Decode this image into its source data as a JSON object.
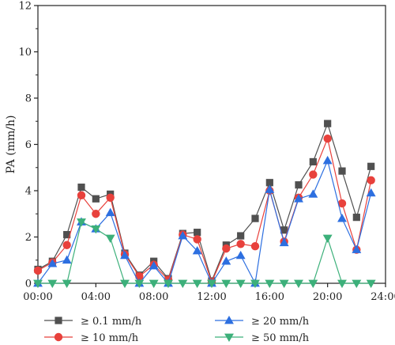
{
  "chart_data": {
    "type": "line",
    "xlabel": "",
    "ylabel": "PA (mm/h)",
    "xlim": [
      0,
      24
    ],
    "ylim": [
      0,
      12
    ],
    "x_ticks": [
      {
        "value": 0,
        "label": "00:00"
      },
      {
        "value": 4,
        "label": "04:00"
      },
      {
        "value": 8,
        "label": "08:00"
      },
      {
        "value": 12,
        "label": "12:00"
      },
      {
        "value": 16,
        "label": "16:00"
      },
      {
        "value": 20,
        "label": "20:00"
      },
      {
        "value": 24,
        "label": "24:00"
      }
    ],
    "y_ticks": [
      0,
      2,
      4,
      6,
      8,
      10,
      12
    ],
    "grid": false,
    "legend_position": "bottom",
    "x": [
      0,
      1,
      2,
      3,
      4,
      5,
      6,
      7,
      8,
      9,
      10,
      11,
      12,
      13,
      14,
      15,
      16,
      17,
      18,
      19,
      20,
      21,
      22,
      23
    ],
    "series": [
      {
        "name": "≥ 0.1 mm/h",
        "color": "#505050",
        "marker": "square",
        "values": [
          0.6,
          0.95,
          2.1,
          4.15,
          3.65,
          3.85,
          1.3,
          0.35,
          0.95,
          0.2,
          2.15,
          2.2,
          0.1,
          1.65,
          2.05,
          2.8,
          4.35,
          2.3,
          4.25,
          5.25,
          6.9,
          4.85,
          2.85,
          5.05
        ]
      },
      {
        "name": "≥ 10 mm/h",
        "color": "#e8413c",
        "marker": "circle",
        "values": [
          0.55,
          0.9,
          1.65,
          3.8,
          3.0,
          3.7,
          1.25,
          0.3,
          0.8,
          0.15,
          2.1,
          1.9,
          0.05,
          1.5,
          1.7,
          1.6,
          4.0,
          1.8,
          3.7,
          4.7,
          6.25,
          3.45,
          1.45,
          4.45
        ]
      },
      {
        "name": "≥ 20 mm/h",
        "color": "#2d6fe0",
        "marker": "triangle-up",
        "values": [
          0,
          0.85,
          1.0,
          2.65,
          2.35,
          3.05,
          1.2,
          0,
          0.75,
          0,
          2.05,
          1.4,
          0,
          0.95,
          1.2,
          0,
          4.05,
          1.75,
          3.65,
          3.85,
          5.3,
          2.8,
          1.45,
          3.9
        ]
      },
      {
        "name": "≥ 50 mm/h",
        "color": "#3cb07a",
        "marker": "triangle-down",
        "values": [
          0,
          0,
          0,
          2.65,
          2.35,
          1.95,
          0,
          0,
          0,
          0,
          0,
          0,
          0,
          0,
          0,
          0,
          0,
          0,
          0,
          0,
          1.95,
          0,
          0,
          0
        ]
      }
    ]
  }
}
